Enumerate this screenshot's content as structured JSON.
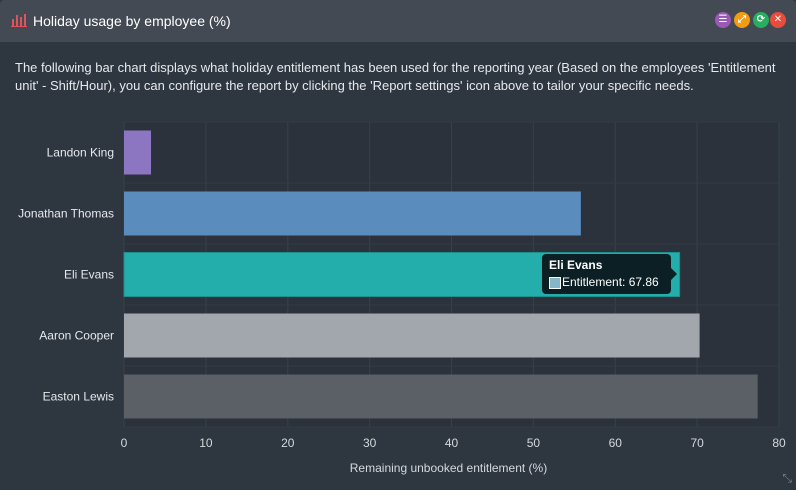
{
  "header": {
    "title": "Holiday usage by employee (%)",
    "buttons": [
      {
        "name": "report-settings-button",
        "icon": "settings-sliders-icon",
        "color": "#9b59b6",
        "glyph": "☰"
      },
      {
        "name": "fullscreen-button",
        "icon": "expand-icon",
        "color": "#f39c12",
        "glyph": "⤢"
      },
      {
        "name": "refresh-button",
        "icon": "refresh-icon",
        "color": "#27ae60",
        "glyph": "⟳"
      },
      {
        "name": "close-button",
        "icon": "close-icon",
        "color": "#e74c3c",
        "glyph": "✕"
      }
    ]
  },
  "description": "The following bar chart displays what holiday entitlement has been used for the reporting year (Based on the employees 'Entitlement unit' - Shift/Hour), you can configure the report by clicking the 'Report settings' icon above to tailor your specific needs.",
  "chart_data": {
    "type": "bar",
    "orientation": "horizontal",
    "categories": [
      "Landon King",
      "Jonathan Thomas",
      "Eli Evans",
      "Aaron Cooper",
      "Easton Lewis"
    ],
    "values": [
      3.3,
      55.8,
      67.86,
      70.3,
      77.4
    ],
    "colors": [
      "#8c76c2",
      "#5a8cbd",
      "#23aeac",
      "#a1a7ad",
      "#5b5f66"
    ],
    "xlabel": "Remaining unbooked entitlement (%)",
    "xlim": [
      0,
      80
    ],
    "xticks": [
      0,
      10,
      20,
      30,
      40,
      50,
      60,
      70,
      80
    ],
    "grid": true
  },
  "tooltip": {
    "name": "Eli Evans",
    "label": "Entitlement: 67.86"
  }
}
